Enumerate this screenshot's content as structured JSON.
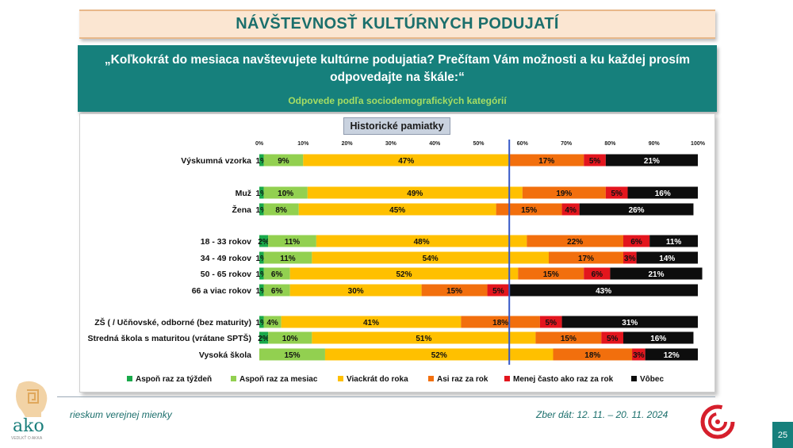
{
  "slide": {
    "title": "NÁVŠTEVNOSŤ KULTÚRNYCH PODUJATÍ",
    "question": "„Koľkokrát do mesiaca navštevujete kultúrne podujatia? Prečítam Vám možnosti a ku každej prosím odpovedajte na škále:“",
    "subtitle": "Odpovede podľa sociodemografických kategórií",
    "footer_left": "rieskum verejnej mienky",
    "footer_right": "Zber dát: 12. 11. – 20. 11. 2024",
    "page_number": "25",
    "logo_text": "ako",
    "logo_small_text": "VEDLKŤ O AKKA"
  },
  "chart_data": {
    "type": "bar",
    "orientation": "horizontal-stacked-100",
    "title": "Historické pamiatky",
    "xlim": [
      0,
      100
    ],
    "x_ticks": [
      "0%",
      "10%",
      "20%",
      "30%",
      "40%",
      "50%",
      "60%",
      "70%",
      "80%",
      "90%",
      "100%"
    ],
    "reference_line_value": 57,
    "legend_position": "bottom",
    "series": [
      {
        "name": "Aspoň raz za týždeň",
        "color": "#19a94a"
      },
      {
        "name": "Aspoň raz za mesiac",
        "color": "#92d050"
      },
      {
        "name": "Viackrát do roka",
        "color": "#ffc000"
      },
      {
        "name": "Asi raz za rok",
        "color": "#f26f0d"
      },
      {
        "name": "Menej často ako raz za rok",
        "color": "#e3151d"
      },
      {
        "name": "Vôbec",
        "color": "#0d0d0d"
      }
    ],
    "categories": [
      {
        "label": "Výskumná vzorka",
        "values": [
          1,
          9,
          47,
          17,
          5,
          21
        ],
        "labels": [
          "1%",
          "9%",
          "47%",
          "17%",
          "5%",
          "21%"
        ]
      },
      {
        "label": "Muž",
        "values": [
          1,
          10,
          49,
          19,
          5,
          16
        ],
        "labels": [
          "1%",
          "10%",
          "49%",
          "19%",
          "5%",
          "16%"
        ]
      },
      {
        "label": "Žena",
        "values": [
          1,
          8,
          45,
          15,
          4,
          26
        ],
        "labels": [
          "1%",
          "8%",
          "45%",
          "15%",
          "4%",
          "26%"
        ]
      },
      {
        "label": "18 - 33 rokov",
        "values": [
          2,
          11,
          48,
          22,
          6,
          11
        ],
        "labels": [
          "2%",
          "11%",
          "48%",
          "22%",
          "6%",
          "11%"
        ]
      },
      {
        "label": "34 - 49 rokov",
        "values": [
          1,
          11,
          54,
          17,
          3,
          14
        ],
        "labels": [
          "1%",
          "11%",
          "54%",
          "17%",
          "3%",
          "14%"
        ]
      },
      {
        "label": "50 - 65 rokov",
        "values": [
          1,
          6,
          52,
          15,
          6,
          21
        ],
        "labels": [
          "1%",
          "6%",
          "52%",
          "15%",
          "6%",
          "21%"
        ]
      },
      {
        "label": "66 a viac rokov",
        "values": [
          1,
          6,
          30,
          15,
          5,
          43
        ],
        "labels": [
          "1%",
          "6%",
          "30%",
          "15%",
          "5%",
          "43%"
        ]
      },
      {
        "label": "ZŠ ( / Učňovské, odborné (bez maturity)",
        "values": [
          1,
          4,
          41,
          18,
          5,
          31
        ],
        "labels": [
          "1%",
          "4%",
          "41%",
          "18%",
          "5%",
          "31%"
        ]
      },
      {
        "label": "Stredná škola s maturitou (vrátane SPTŠ)",
        "values": [
          2,
          10,
          51,
          15,
          5,
          16
        ],
        "labels": [
          "2%",
          "10%",
          "51%",
          "15%",
          "5%",
          "16%"
        ]
      },
      {
        "label": "Vysoká škola",
        "values": [
          0,
          15,
          52,
          18,
          3,
          12
        ],
        "labels": [
          "",
          "15%",
          "52%",
          "18%",
          "3%",
          "12%"
        ]
      }
    ]
  }
}
